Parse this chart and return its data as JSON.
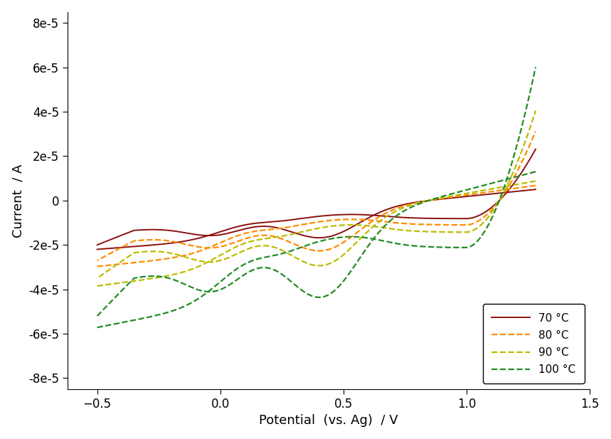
{
  "title": "",
  "xlabel": "Potential  (vs. Ag)  / V",
  "ylabel": "Current  / A",
  "xlim": [
    -0.62,
    1.45
  ],
  "ylim": [
    -8.5e-05,
    8.5e-05
  ],
  "xticks": [
    -0.5,
    0.0,
    0.5,
    1.0,
    1.5
  ],
  "yticks": [
    -8e-05,
    -6e-05,
    -4e-05,
    -2e-05,
    0,
    2e-05,
    4e-05,
    6e-05,
    8e-05
  ],
  "curves": [
    {
      "label": "70 °C",
      "color": "#8B1010",
      "linestyle": "solid",
      "linewidth": 1.4
    },
    {
      "label": "80 °C",
      "color": "#FF8C00",
      "linestyle": "dashed",
      "linewidth": 1.6
    },
    {
      "label": "90 °C",
      "color": "#BBBB00",
      "linestyle": "dashed",
      "linewidth": 1.6
    },
    {
      "label": "100 °C",
      "color": "#228B22",
      "linestyle": "dashed",
      "linewidth": 1.6
    }
  ],
  "scales": [
    1.0,
    1.35,
    1.75,
    2.6
  ],
  "background_color": "#ffffff",
  "label_fontsize": 13,
  "tick_fontsize": 12,
  "legend_fontsize": 11
}
